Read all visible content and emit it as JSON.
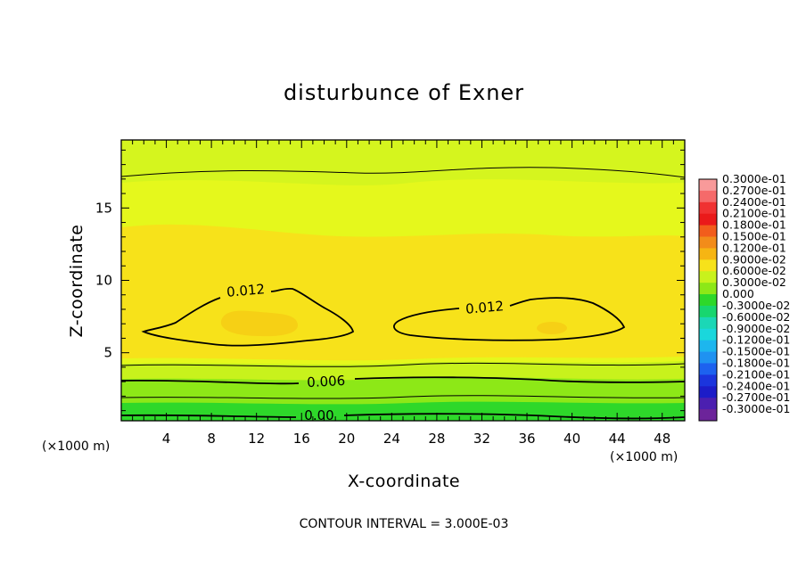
{
  "chart_data": {
    "type": "heatmap",
    "title": "disturbunce of Exner",
    "xlabel": "X-coordinate",
    "ylabel": "Z-coordinate",
    "x_unit_left": "(×1000 m)",
    "x_unit_right": "(×1000 m)",
    "xlim": [
      0,
      50
    ],
    "ylim": [
      0.3,
      19.7
    ],
    "xticks": [
      "4",
      "8",
      "12",
      "16",
      "20",
      "24",
      "28",
      "32",
      "36",
      "40",
      "44",
      "48"
    ],
    "yticks": [
      "5",
      "10",
      "15"
    ],
    "footer": "CONTOUR INTERVAL = 3.000E-03",
    "contour_interval": 0.003,
    "contour_labels": [
      {
        "text": "0.012",
        "x": 11.0,
        "z": 9.1
      },
      {
        "text": "0.012",
        "x": 32.0,
        "z": 7.8
      },
      {
        "text": "0.006",
        "x": 18.0,
        "z": 2.6
      },
      {
        "text": "0.00",
        "x": 17.5,
        "z": 0.5
      }
    ],
    "colorbar": {
      "labels": [
        "0.3000e-01",
        "0.2700e-01",
        "0.2400e-01",
        "0.2100e-01",
        "0.1800e-01",
        "0.1500e-01",
        "0.1200e-01",
        "0.9000e-02",
        "0.6000e-02",
        "0.3000e-02",
        "0.000",
        "-0.3000e-02",
        "-0.6000e-02",
        "-0.9000e-02",
        "-0.1200e-01",
        "-0.1500e-01",
        "-0.1800e-01",
        "-0.2100e-01",
        "-0.2400e-01",
        "-0.2700e-01",
        "-0.3000e-01"
      ],
      "colors": [
        "#f89a9a",
        "#f56a6a",
        "#f03232",
        "#ea1a1a",
        "#f25d1c",
        "#f28c1a",
        "#f6b513",
        "#f7e21a",
        "#c8f21c",
        "#8de817",
        "#2ed82a",
        "#18d66f",
        "#1bd7b6",
        "#1ad7dc",
        "#1db6ee",
        "#1f92f1",
        "#1d62ef",
        "#1b35dd",
        "#1c1cc8",
        "#4b1fb0",
        "#6c249a"
      ]
    },
    "field_colors": {
      "surface": "#2ed82a",
      "low": "#8de817",
      "mid": "#c8f21c",
      "upper": "#d5f51e",
      "high": "#e5f81c",
      "core": "#f7e21a",
      "peak": "#f6d015"
    },
    "line_color": "#000000"
  }
}
